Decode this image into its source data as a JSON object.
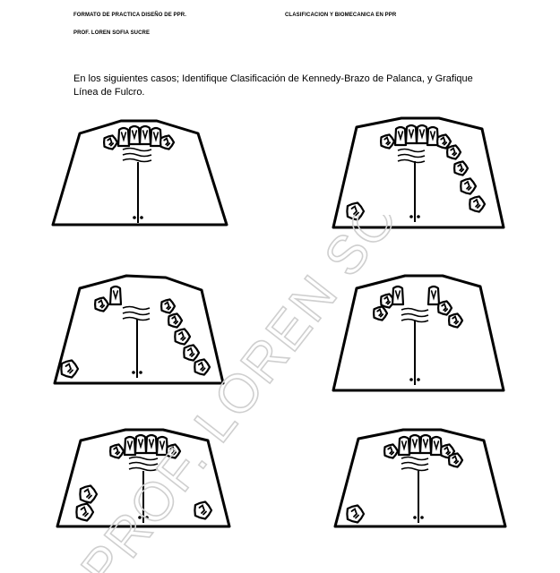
{
  "header": {
    "left": "FORMATO DE PRACTICA DISEÑO DE PPR.",
    "right": "CLASIFICACION Y BIOMECANICA EN PPR",
    "professor": "PROF. LOREN SOFIA SUCRE"
  },
  "instructions": "En los siguientes casos; Identifique Clasificación de Kennedy-Brazo de Palanca, y Grafique Línea de Fulcro.",
  "watermark": "PROF. LOREN SOFIA SUCRE",
  "colors": {
    "ink": "#000000",
    "paper": "#ffffff",
    "watermark": "#d0d0d0"
  }
}
